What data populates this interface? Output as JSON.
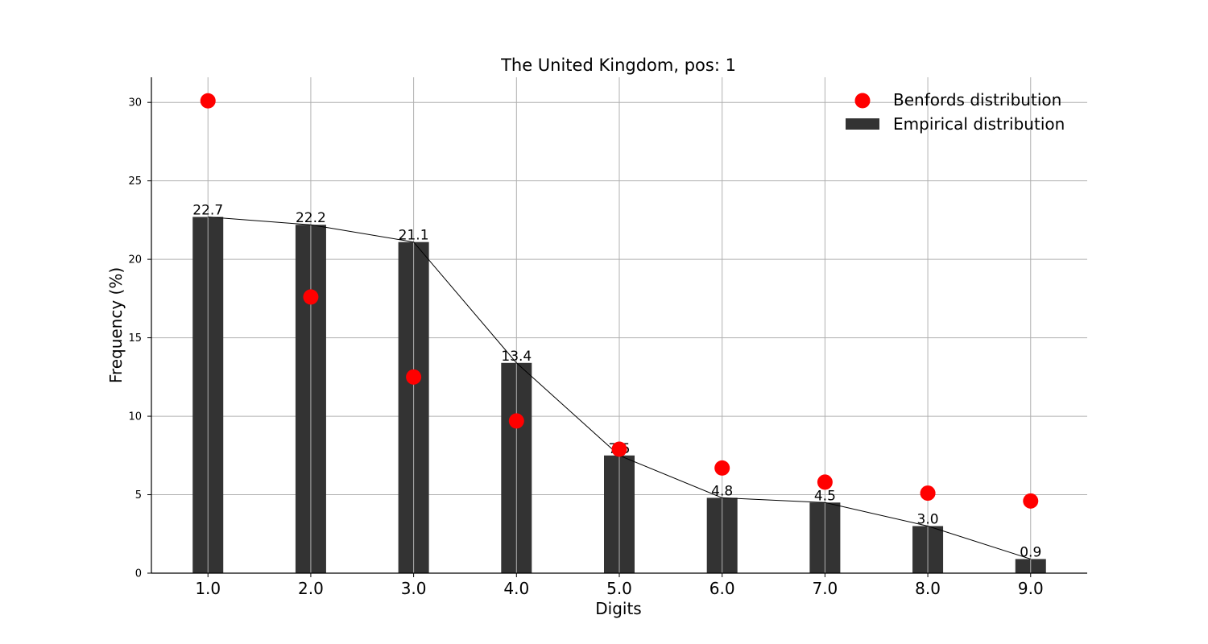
{
  "chart_data": {
    "type": "bar",
    "title": "The United Kingdom, pos: 1",
    "xlabel": "Digits",
    "ylabel": "Frequency (%)",
    "categories": [
      "1.0",
      "2.0",
      "3.0",
      "4.0",
      "5.0",
      "6.0",
      "7.0",
      "8.0",
      "9.0"
    ],
    "x": [
      1,
      2,
      3,
      4,
      5,
      6,
      7,
      8,
      9
    ],
    "series": [
      {
        "name": "Empirical distribution",
        "kind": "bar",
        "color": "#333333",
        "values": [
          22.7,
          22.2,
          21.1,
          13.4,
          7.5,
          4.8,
          4.5,
          3.0,
          0.9
        ],
        "labels": [
          "22.7",
          "22.2",
          "21.1",
          "13.4",
          "7.5",
          "4.8",
          "4.5",
          "3.0",
          "0.9"
        ]
      },
      {
        "name": "Benfords distribution",
        "kind": "scatter",
        "color": "#ff0000",
        "values": [
          30.1,
          17.6,
          12.5,
          9.7,
          7.9,
          6.7,
          5.8,
          5.1,
          4.6
        ]
      }
    ],
    "line_overlay": {
      "color": "#000000",
      "follows": "Empirical distribution"
    },
    "xlim": [
      0.45,
      9.55
    ],
    "ylim": [
      0,
      31.6
    ],
    "yticks": [
      "0",
      "5",
      "10",
      "15",
      "20",
      "25",
      "30"
    ],
    "ytick_values": [
      0,
      5,
      10,
      15,
      20,
      25,
      30
    ],
    "grid": true,
    "legend_position": "top-right"
  }
}
